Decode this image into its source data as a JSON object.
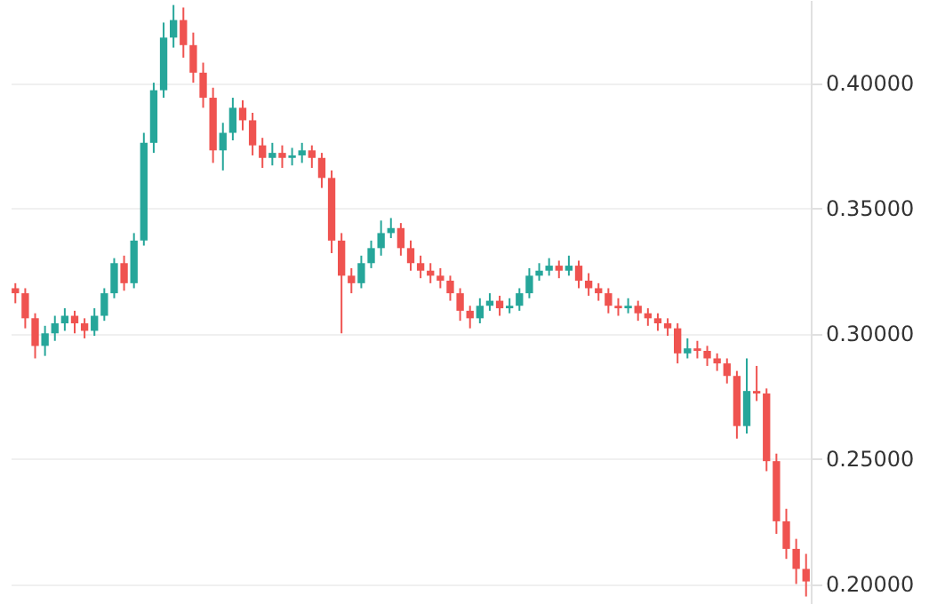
{
  "chart_data": {
    "type": "candlestick",
    "categories": [
      null,
      null,
      null,
      null,
      null,
      null,
      null,
      null,
      null,
      null,
      null,
      null,
      null,
      null,
      null,
      null,
      null,
      null,
      null,
      null,
      null,
      null,
      null,
      null,
      null,
      null,
      null,
      null,
      null,
      null,
      null,
      null,
      null,
      null,
      null,
      null,
      null,
      null,
      null,
      null,
      null,
      null,
      null,
      null,
      null,
      null,
      null,
      null,
      null,
      null,
      null,
      null,
      null,
      null,
      null,
      null,
      null,
      null,
      null,
      null,
      null,
      null,
      null,
      null,
      null,
      null,
      null,
      null,
      null,
      null,
      null,
      null,
      null,
      null,
      null,
      null,
      null,
      null,
      null,
      null,
      null
    ],
    "ohlc": [
      [
        0.318,
        0.32,
        0.312,
        0.316
      ],
      [
        0.316,
        0.318,
        0.302,
        0.306
      ],
      [
        0.306,
        0.308,
        0.29,
        0.295
      ],
      [
        0.295,
        0.303,
        0.291,
        0.3
      ],
      [
        0.3,
        0.307,
        0.297,
        0.304
      ],
      [
        0.304,
        0.31,
        0.301,
        0.307
      ],
      [
        0.307,
        0.309,
        0.3,
        0.304
      ],
      [
        0.304,
        0.306,
        0.298,
        0.301
      ],
      [
        0.301,
        0.31,
        0.299,
        0.307
      ],
      [
        0.307,
        0.318,
        0.305,
        0.316
      ],
      [
        0.316,
        0.33,
        0.314,
        0.328
      ],
      [
        0.328,
        0.331,
        0.317,
        0.32
      ],
      [
        0.32,
        0.34,
        0.318,
        0.337
      ],
      [
        0.337,
        0.38,
        0.335,
        0.376
      ],
      [
        0.376,
        0.4,
        0.372,
        0.397
      ],
      [
        0.397,
        0.424,
        0.394,
        0.418
      ],
      [
        0.418,
        0.431,
        0.414,
        0.425
      ],
      [
        0.425,
        0.43,
        0.41,
        0.415
      ],
      [
        0.415,
        0.42,
        0.4,
        0.404
      ],
      [
        0.404,
        0.408,
        0.39,
        0.394
      ],
      [
        0.394,
        0.398,
        0.368,
        0.373
      ],
      [
        0.373,
        0.384,
        0.365,
        0.38
      ],
      [
        0.38,
        0.394,
        0.377,
        0.39
      ],
      [
        0.39,
        0.393,
        0.381,
        0.385
      ],
      [
        0.385,
        0.388,
        0.371,
        0.375
      ],
      [
        0.375,
        0.378,
        0.366,
        0.37
      ],
      [
        0.37,
        0.376,
        0.367,
        0.372
      ],
      [
        0.372,
        0.375,
        0.366,
        0.37
      ],
      [
        0.37,
        0.374,
        0.367,
        0.371
      ],
      [
        0.371,
        0.376,
        0.368,
        0.373
      ],
      [
        0.373,
        0.375,
        0.366,
        0.37
      ],
      [
        0.37,
        0.372,
        0.358,
        0.362
      ],
      [
        0.362,
        0.365,
        0.332,
        0.337
      ],
      [
        0.337,
        0.34,
        0.3,
        0.323
      ],
      [
        0.323,
        0.326,
        0.316,
        0.32
      ],
      [
        0.32,
        0.331,
        0.318,
        0.328
      ],
      [
        0.328,
        0.337,
        0.326,
        0.334
      ],
      [
        0.334,
        0.345,
        0.331,
        0.34
      ],
      [
        0.34,
        0.346,
        0.338,
        0.342
      ],
      [
        0.342,
        0.344,
        0.331,
        0.334
      ],
      [
        0.334,
        0.337,
        0.325,
        0.328
      ],
      [
        0.328,
        0.331,
        0.322,
        0.325
      ],
      [
        0.325,
        0.328,
        0.32,
        0.323
      ],
      [
        0.323,
        0.326,
        0.318,
        0.321
      ],
      [
        0.321,
        0.323,
        0.313,
        0.316
      ],
      [
        0.316,
        0.318,
        0.305,
        0.309
      ],
      [
        0.309,
        0.311,
        0.302,
        0.306
      ],
      [
        0.306,
        0.314,
        0.304,
        0.311
      ],
      [
        0.311,
        0.316,
        0.309,
        0.313
      ],
      [
        0.313,
        0.315,
        0.307,
        0.31
      ],
      [
        0.31,
        0.314,
        0.308,
        0.311
      ],
      [
        0.311,
        0.318,
        0.309,
        0.316
      ],
      [
        0.316,
        0.326,
        0.314,
        0.323
      ],
      [
        0.323,
        0.328,
        0.321,
        0.325
      ],
      [
        0.325,
        0.33,
        0.323,
        0.327
      ],
      [
        0.327,
        0.329,
        0.322,
        0.325
      ],
      [
        0.325,
        0.331,
        0.323,
        0.327
      ],
      [
        0.327,
        0.329,
        0.318,
        0.321
      ],
      [
        0.321,
        0.324,
        0.315,
        0.318
      ],
      [
        0.318,
        0.32,
        0.313,
        0.316
      ],
      [
        0.316,
        0.318,
        0.308,
        0.311
      ],
      [
        0.311,
        0.314,
        0.307,
        0.31
      ],
      [
        0.31,
        0.314,
        0.308,
        0.311
      ],
      [
        0.311,
        0.313,
        0.305,
        0.308
      ],
      [
        0.308,
        0.31,
        0.303,
        0.306
      ],
      [
        0.306,
        0.308,
        0.301,
        0.304
      ],
      [
        0.304,
        0.306,
        0.299,
        0.302
      ],
      [
        0.302,
        0.304,
        0.288,
        0.292
      ],
      [
        0.292,
        0.298,
        0.29,
        0.294
      ],
      [
        0.294,
        0.297,
        0.29,
        0.293
      ],
      [
        0.293,
        0.295,
        0.287,
        0.29
      ],
      [
        0.29,
        0.292,
        0.285,
        0.288
      ],
      [
        0.288,
        0.29,
        0.28,
        0.283
      ],
      [
        0.283,
        0.285,
        0.258,
        0.263
      ],
      [
        0.263,
        0.29,
        0.26,
        0.277
      ],
      [
        0.277,
        0.287,
        0.273,
        0.276
      ],
      [
        0.276,
        0.278,
        0.245,
        0.249
      ],
      [
        0.249,
        0.252,
        0.22,
        0.225
      ],
      [
        0.225,
        0.23,
        0.21,
        0.214
      ],
      [
        0.214,
        0.218,
        0.2,
        0.206
      ],
      [
        0.206,
        0.212,
        0.195,
        0.201
      ]
    ],
    "ylim": [
      0.192,
      0.433
    ],
    "yticks": [
      {
        "value": 0.2,
        "label": "0.20000"
      },
      {
        "value": 0.25,
        "label": "0.25000"
      },
      {
        "value": 0.3,
        "label": "0.30000"
      },
      {
        "value": 0.35,
        "label": "0.35000"
      },
      {
        "value": 0.4,
        "label": "0.40000"
      }
    ],
    "grid": "y",
    "tick_labels": "y"
  }
}
